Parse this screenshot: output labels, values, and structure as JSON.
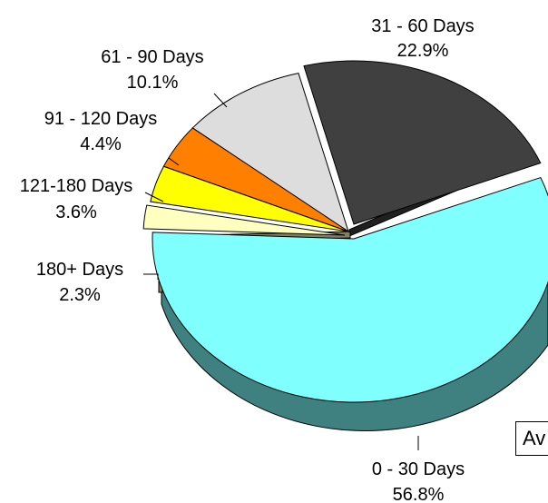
{
  "chart_data": {
    "type": "pie",
    "style": "3d-exploded",
    "title": "",
    "slices": [
      {
        "label": "0 - 30 Days",
        "value": 56.8,
        "value_label": "56.8%",
        "color": "#80ffff",
        "side_color": "#3f8080"
      },
      {
        "label": "31 - 60 Days",
        "value": 22.9,
        "value_label": "22.9%",
        "color": "#404040",
        "side_color": "#202020"
      },
      {
        "label": "61 - 90 Days",
        "value": 10.1,
        "value_label": "10.1%",
        "color": "#dddddd",
        "side_color": "#8a8a8a"
      },
      {
        "label": "91 - 120 Days",
        "value": 4.4,
        "value_label": "4.4%",
        "color": "#ff7f00",
        "side_color": "#804000"
      },
      {
        "label": "121-180 Days",
        "value": 3.6,
        "value_label": "3.6%",
        "color": "#ffff00",
        "side_color": "#808000"
      },
      {
        "label": "180+  Days",
        "value": 2.3,
        "value_label": "2.3%",
        "color": "#ffffc0",
        "side_color": "#808060"
      }
    ]
  },
  "legend_partial_text": "Av"
}
